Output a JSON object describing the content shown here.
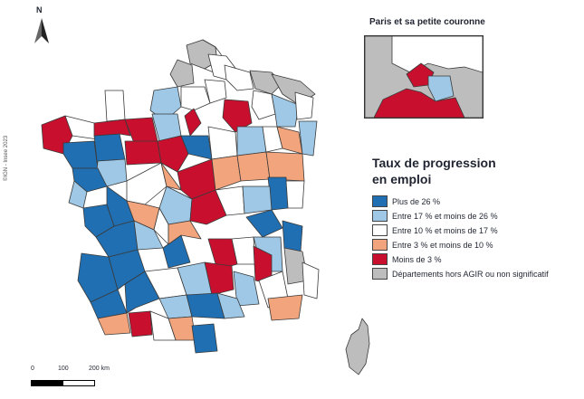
{
  "north_label": "N",
  "copyright": "©IGN - Insee 2023",
  "inset": {
    "title": "Paris et sa petite couronne"
  },
  "legend": {
    "title_line1": "Taux de progression",
    "title_line2": "en emploi",
    "items": [
      {
        "label": "Plus de 26 %",
        "color": "#1f6fb2"
      },
      {
        "label": "Entre 17 % et moins de 26 %",
        "color": "#9ec8e6"
      },
      {
        "label": "Entre 10 % et moins de 17 %",
        "color": "#ffffff"
      },
      {
        "label": "Entre 3 % et moins de 10 %",
        "color": "#f2a47c"
      },
      {
        "label": "Moins de 3 %",
        "color": "#c8102e"
      },
      {
        "label": "Départements hors AGIR ou non significatif",
        "color": "#bdbdbd"
      }
    ]
  },
  "scale": {
    "labels": [
      "0",
      "100",
      "200 km"
    ]
  },
  "colors": {
    "very_high": "#1f6fb2",
    "high": "#9ec8e6",
    "medium": "#ffffff",
    "low": "#f2a47c",
    "very_low": "#c8102e",
    "na": "#bdbdbd",
    "border": "#3a3a3a"
  }
}
